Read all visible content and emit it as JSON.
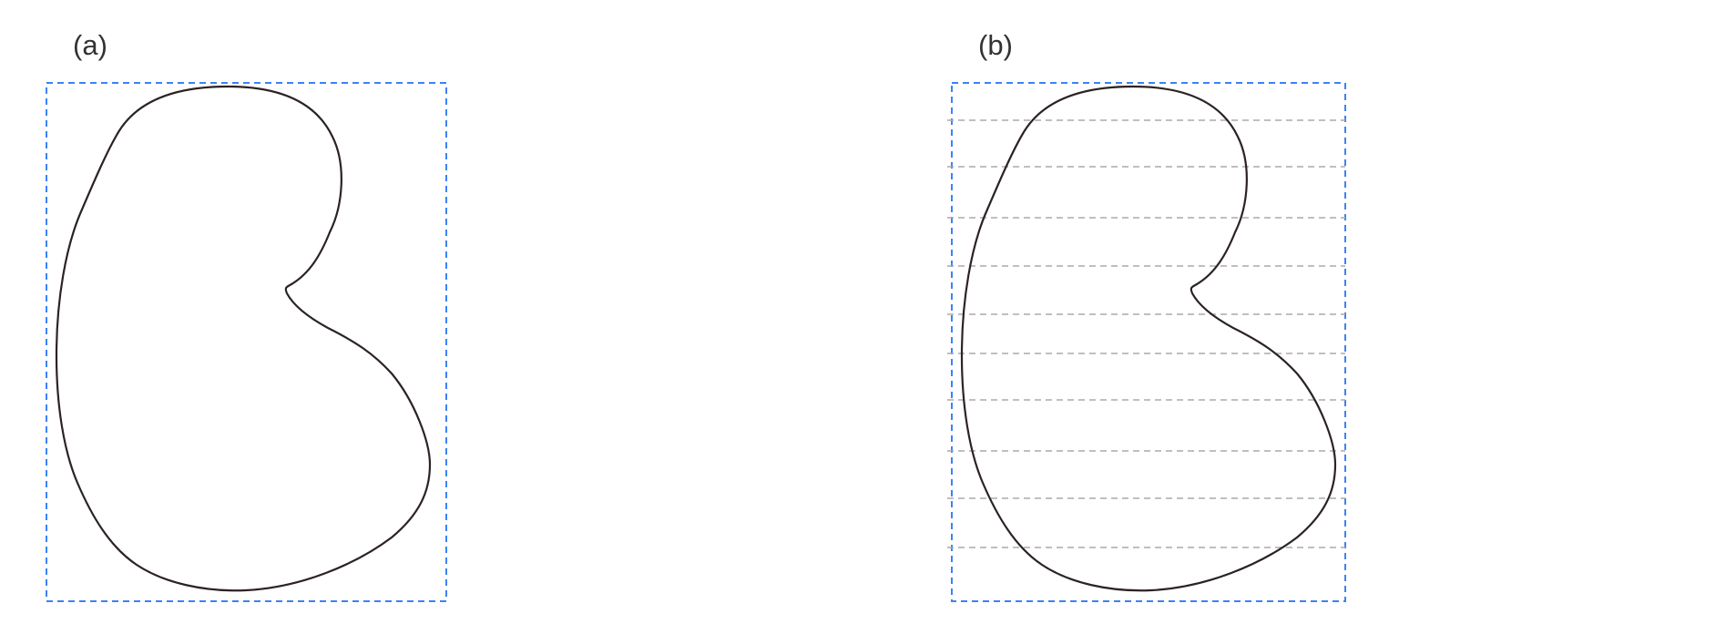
{
  "panels": [
    {
      "label": "(a)",
      "has_guides": false
    },
    {
      "label": "(b)",
      "has_guides": true
    }
  ],
  "colors": {
    "bbox_stroke": "#3b82f6",
    "outline_stroke": "#2b2322",
    "guide_stroke": "#aaaaaa",
    "label_text": "#333333"
  },
  "guide_count": 10
}
